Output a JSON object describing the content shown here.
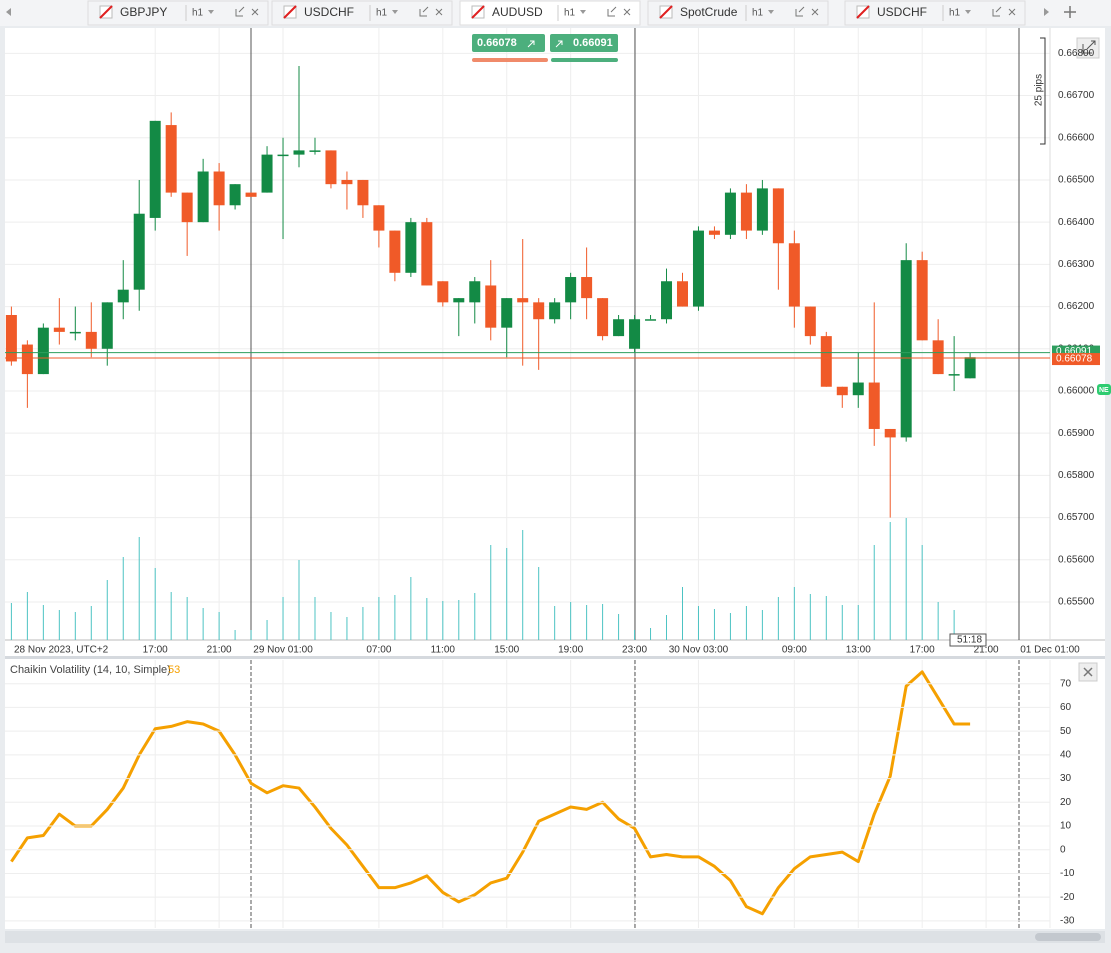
{
  "tabs": [
    {
      "symbol": "GBPJPY",
      "interval": "h1"
    },
    {
      "symbol": "USDCHF",
      "interval": "h1"
    },
    {
      "symbol": "AUDUSD",
      "interval": "h1"
    },
    {
      "symbol": "SpotCrude",
      "interval": "h1"
    },
    {
      "symbol": "USDCHF",
      "interval": "h1"
    }
  ],
  "trade": {
    "sell": "0.66078",
    "buy": "0.66091"
  },
  "chart_data": [
    {
      "type": "candlestick",
      "x_label": "28 Nov 2023, UTC+2",
      "xlim": [
        -0.4,
        65
      ],
      "xticks": [
        {
          "value": 9,
          "label": "17:00"
        },
        {
          "value": 13,
          "label": "21:00"
        },
        {
          "value": 17,
          "label": "29 Nov 01:00"
        },
        {
          "value": 23,
          "label": "07:00"
        },
        {
          "value": 27,
          "label": "11:00"
        },
        {
          "value": 31,
          "label": "15:00"
        },
        {
          "value": 35,
          "label": "19:00"
        },
        {
          "value": 39,
          "label": "23:00"
        },
        {
          "value": 43,
          "label": "30 Nov 03:00"
        },
        {
          "value": 49,
          "label": "09:00"
        },
        {
          "value": 53,
          "label": "13:00"
        },
        {
          "value": 57,
          "label": "17:00"
        },
        {
          "value": 61,
          "label": "21:00"
        },
        {
          "value": 65,
          "label": "01 Dec 01:00"
        }
      ],
      "ylim": [
        0.6541,
        0.6686
      ],
      "yticks": [
        {
          "value": 0.655,
          "label": "0.65500"
        },
        {
          "value": 0.656,
          "label": "0.65600"
        },
        {
          "value": 0.657,
          "label": "0.65700"
        },
        {
          "value": 0.658,
          "label": "0.65800"
        },
        {
          "value": 0.659,
          "label": "0.65900"
        },
        {
          "value": 0.66,
          "label": "0.66000"
        },
        {
          "value": 0.661,
          "label": "0.66100"
        },
        {
          "value": 0.662,
          "label": "0.66200"
        },
        {
          "value": 0.663,
          "label": "0.66300"
        },
        {
          "value": 0.664,
          "label": "0.66400"
        },
        {
          "value": 0.665,
          "label": "0.66500"
        },
        {
          "value": 0.666,
          "label": "0.66600"
        },
        {
          "value": 0.667,
          "label": "0.66700"
        },
        {
          "value": 0.668,
          "label": "0.66800"
        }
      ],
      "grid": true,
      "up_color": "#138a45",
      "down_color": "#f05a28",
      "volume_color": "#4cc3c3",
      "open": [
        0.6618,
        0.6611,
        0.6604,
        0.6615,
        0.6614,
        0.6614,
        0.661,
        0.6621,
        0.6624,
        0.6641,
        0.6663,
        0.6647,
        0.664,
        0.6652,
        0.6644,
        0.6647,
        0.6647,
        0.6656,
        0.6656,
        0.6657,
        0.6657,
        0.665,
        0.665,
        0.6644,
        0.6638,
        0.6628,
        0.664,
        0.6626,
        0.6621,
        0.6621,
        0.6625,
        0.6615,
        0.6622,
        0.6621,
        0.6617,
        0.6621,
        0.6627,
        0.6622,
        0.6613,
        0.661,
        0.6617,
        0.6617,
        0.6626,
        0.662,
        0.6638,
        0.6637,
        0.6647,
        0.6638,
        0.6648,
        0.6635,
        0.662,
        0.6613,
        0.6601,
        0.6599,
        0.6602,
        0.6591,
        0.6589,
        0.6631,
        0.6612,
        0.6604,
        0.6603
      ],
      "high": [
        0.662,
        0.6612,
        0.6616,
        0.6622,
        0.662,
        0.6621,
        0.6621,
        0.6631,
        0.665,
        0.6664,
        0.6666,
        0.6647,
        0.6655,
        0.6654,
        0.6649,
        0.6647,
        0.6658,
        0.666,
        0.6677,
        0.666,
        0.6657,
        0.6652,
        0.665,
        0.6644,
        0.6638,
        0.6641,
        0.6641,
        0.6626,
        0.6622,
        0.6627,
        0.6631,
        0.6622,
        0.6636,
        0.6622,
        0.6622,
        0.6628,
        0.6634,
        0.6622,
        0.6618,
        0.6618,
        0.6618,
        0.6629,
        0.6628,
        0.6639,
        0.6639,
        0.6648,
        0.6649,
        0.665,
        0.6648,
        0.6638,
        0.662,
        0.6614,
        0.6601,
        0.6609,
        0.6621,
        0.6591,
        0.6635,
        0.6633,
        0.6617,
        0.6613,
        0.6609
      ],
      "low": [
        0.6606,
        0.6596,
        0.6604,
        0.6611,
        0.6612,
        0.6608,
        0.6606,
        0.6617,
        0.6619,
        0.6638,
        0.6646,
        0.6632,
        0.664,
        0.6638,
        0.6643,
        0.6646,
        0.6647,
        0.6636,
        0.6653,
        0.6656,
        0.6648,
        0.6643,
        0.6641,
        0.6634,
        0.6626,
        0.6627,
        0.6625,
        0.662,
        0.6613,
        0.6616,
        0.6612,
        0.6608,
        0.6606,
        0.6605,
        0.6616,
        0.6617,
        0.6617,
        0.6612,
        0.6613,
        0.6609,
        0.6617,
        0.6616,
        0.662,
        0.6619,
        0.6636,
        0.6636,
        0.6636,
        0.6637,
        0.6624,
        0.6615,
        0.6611,
        0.6601,
        0.6596,
        0.6596,
        0.6587,
        0.657,
        0.6588,
        0.6612,
        0.6604,
        0.66,
        0.6603
      ],
      "close": [
        0.6607,
        0.6604,
        0.6615,
        0.6614,
        0.6614,
        0.661,
        0.6621,
        0.6624,
        0.6642,
        0.6664,
        0.6647,
        0.664,
        0.6652,
        0.6644,
        0.6649,
        0.6646,
        0.6656,
        0.6656,
        0.6657,
        0.6657,
        0.6649,
        0.6649,
        0.6644,
        0.6638,
        0.6628,
        0.664,
        0.6625,
        0.6621,
        0.6622,
        0.6626,
        0.6615,
        0.6622,
        0.6621,
        0.6617,
        0.6621,
        0.6627,
        0.6622,
        0.6613,
        0.6617,
        0.6617,
        0.6617,
        0.6626,
        0.662,
        0.6638,
        0.6637,
        0.6647,
        0.6638,
        0.6648,
        0.6635,
        0.662,
        0.6613,
        0.6601,
        0.6599,
        0.6602,
        0.6591,
        0.6589,
        0.6631,
        0.6612,
        0.6604,
        0.6604,
        0.6608
      ],
      "volume": [
        37,
        48,
        35,
        30,
        28,
        34,
        60,
        83,
        103,
        72,
        48,
        43,
        32,
        28,
        10,
        10,
        20,
        43,
        80,
        43,
        28,
        23,
        33,
        43,
        45,
        63,
        42,
        39,
        40,
        47,
        95,
        92,
        110,
        73,
        34,
        38,
        35,
        36,
        26,
        10,
        12,
        25,
        53,
        34,
        31,
        27,
        34,
        30,
        43,
        53,
        46,
        44,
        35,
        35,
        95,
        118,
        122,
        95,
        38,
        30,
        5
      ],
      "price_lines": [
        {
          "value": 0.66091,
          "label": "0.66091",
          "color": "#2e9e5e"
        },
        {
          "value": 0.66078,
          "label": "0.66078",
          "color": "#f05a28"
        }
      ],
      "pip_label": "25 pips",
      "timer": "51:18",
      "badge": "NE"
    },
    {
      "type": "line",
      "title": "Chaikin Volatility (14, 10, Simple)",
      "color": "#f5a000",
      "xlim": [
        -0.4,
        65
      ],
      "ylim": [
        -33,
        80
      ],
      "yticks": [
        70,
        60,
        50,
        40,
        30,
        20,
        10,
        0,
        -10,
        -20,
        -30
      ],
      "values": [
        -5,
        5,
        6,
        15,
        10,
        10,
        17,
        26,
        40,
        51,
        52,
        54,
        53,
        50,
        40,
        28,
        24,
        27,
        26,
        18,
        9,
        2,
        -7,
        -16,
        -16,
        -14,
        -11,
        -18,
        -22,
        -19,
        -14,
        -12,
        -1,
        12,
        15,
        18,
        17,
        20,
        13,
        9,
        -3,
        -2,
        -3,
        -3,
        -7,
        -13,
        -24,
        -27,
        -16,
        -8,
        -3,
        -2,
        -1,
        -5,
        15,
        31,
        69,
        75,
        64,
        53,
        53
      ]
    }
  ]
}
